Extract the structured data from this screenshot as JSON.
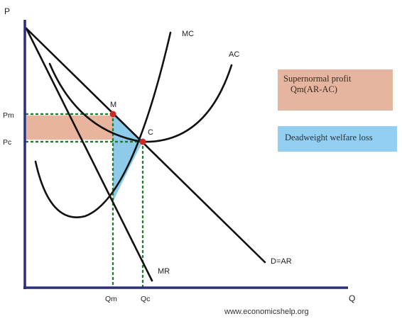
{
  "axes": {
    "y_label": "P",
    "x_label": "Q",
    "y_ticks": [
      "Pm",
      "Pc"
    ],
    "x_ticks": [
      "Qm",
      "Qc"
    ]
  },
  "curves": {
    "mc": "MC",
    "ac": "AC",
    "mr": "MR",
    "demand": "D=AR"
  },
  "points": {
    "m": "M",
    "c": "C"
  },
  "legend": {
    "profit_line1": "Supernormal profit",
    "profit_line2": "Qm(AR-AC)",
    "dwl": "Deadweight welfare loss"
  },
  "colors": {
    "axis": "#2b2f7a",
    "curve": "#111111",
    "profit_fill": "#e8b49e",
    "dwl_fill": "#8ecbea",
    "points": "#cc2a24",
    "dotted": "#1f7a2a",
    "legend_profit_bg": "#e6b5a0",
    "legend_dwl_bg": "#93cff0"
  },
  "footer": {
    "source": "www.economicshelp.org"
  }
}
